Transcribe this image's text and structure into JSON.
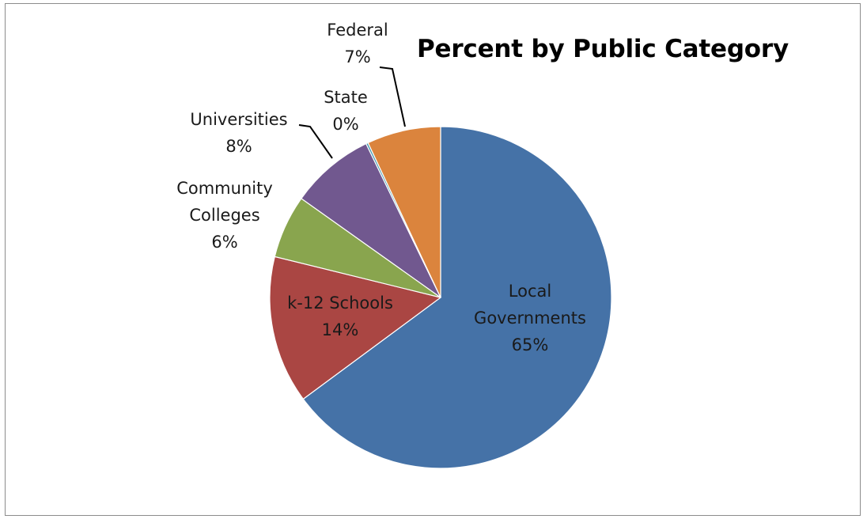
{
  "chart_data": {
    "type": "pie",
    "title": "Percent by Public Category",
    "slices": [
      {
        "name": "Local Governments",
        "value": 65,
        "percent_label": "65%",
        "color": "#4572A7"
      },
      {
        "name": "k-12 Schools",
        "value": 14,
        "percent_label": "14%",
        "color": "#AA4643"
      },
      {
        "name": "Community Colleges",
        "value": 6,
        "percent_label": "6%",
        "color": "#89A54E"
      },
      {
        "name": "Universities",
        "value": 8,
        "percent_label": "8%",
        "color": "#71588F"
      },
      {
        "name": "State",
        "value": 0.2,
        "percent_label": "0%",
        "color": "#4198AF"
      },
      {
        "name": "Federal",
        "value": 7,
        "percent_label": "7%",
        "color": "#DB843D"
      }
    ],
    "start_angle": "12 o'clock",
    "direction": "clockwise",
    "legend": "none"
  }
}
